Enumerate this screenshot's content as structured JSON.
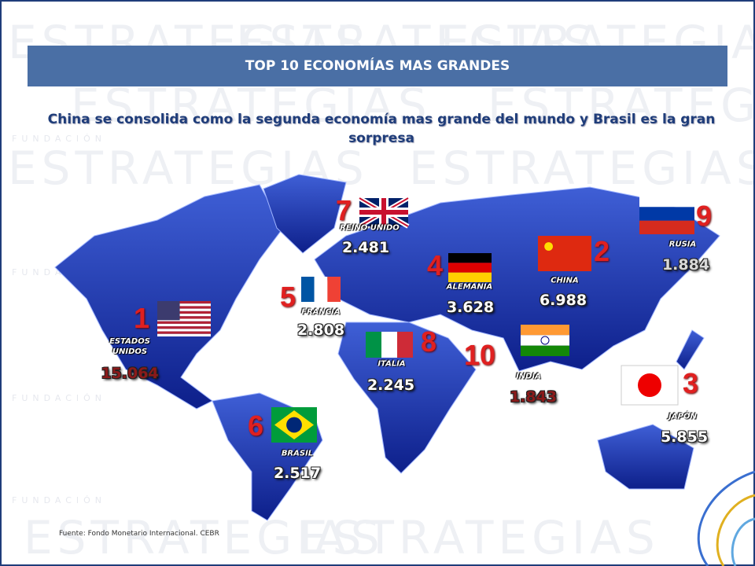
{
  "watermark": "ESTRATEGIAS",
  "watermark_small": "FUNDACIÓN",
  "header": {
    "title": "TOP 10 ECONOMÍAS MAS GRANDES",
    "subtitle": "China se consolida como la segunda economía mas grande del mundo y Brasil es la gran sorpresa"
  },
  "countries": [
    {
      "rank": 1,
      "name": "ESTADOS UNIDOS",
      "value": "15.064",
      "color": "#8b1a1a"
    },
    {
      "rank": 2,
      "name": "CHINA",
      "value": "6.988",
      "color": "#ffffff"
    },
    {
      "rank": 3,
      "name": "JAPÓN",
      "value": "5.855",
      "color": "#ffffff"
    },
    {
      "rank": 4,
      "name": "ALEMANIA",
      "value": "3.628",
      "color": "#ffffff"
    },
    {
      "rank": 5,
      "name": "FRANCIA",
      "value": "2.808",
      "color": "#ffffff"
    },
    {
      "rank": 6,
      "name": "BRASIL",
      "value": "2.517",
      "color": "#ffffff"
    },
    {
      "rank": 7,
      "name": "REINO UNIDO",
      "value": "2.481",
      "color": "#ffffff"
    },
    {
      "rank": 8,
      "name": "ITALIA",
      "value": "2.245",
      "color": "#ffffff"
    },
    {
      "rank": 9,
      "name": "RUSIA",
      "value": "1.884",
      "color": "#d8d8d8"
    },
    {
      "rank": 10,
      "name": "INDIA",
      "value": "1.843",
      "color": "#8b1a1a"
    }
  ],
  "source": "Fuente: Fondo Monetario Internacional. CEBR"
}
